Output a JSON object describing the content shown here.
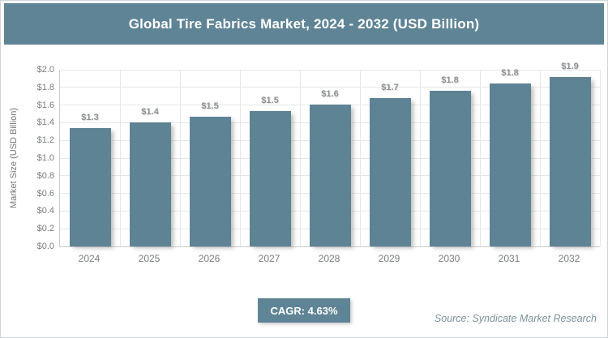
{
  "header": {
    "title": "Global Tire Fabrics Market, 2024 - 2032 (USD Billion)"
  },
  "footer": {
    "cagr_label": "CAGR: 4.63%",
    "source_label": "Source: Syndicate Market Research"
  },
  "colors": {
    "accent": "#5f8495",
    "header_bg": "#5f8495",
    "bar": "#5e8394",
    "grid": "#e5e7e8",
    "axis": "#c6cbce",
    "tick_text": "#797d7f",
    "data_label_text": "#8d9193",
    "source_text": "#7d929c",
    "page_border": "#cfd4d6",
    "title_text": "#ffffff"
  },
  "chart_data": {
    "type": "bar",
    "title": "Global Tire Fabrics Market, 2024 - 2032 (USD Billion)",
    "categories": [
      "2024",
      "2025",
      "2026",
      "2027",
      "2028",
      "2029",
      "2030",
      "2031",
      "2032"
    ],
    "values": [
      1.34,
      1.4,
      1.47,
      1.53,
      1.61,
      1.68,
      1.76,
      1.84,
      1.92
    ],
    "data_labels": [
      "$1.3",
      "$1.4",
      "$1.5",
      "$1.5",
      "$1.6",
      "$1.7",
      "$1.8",
      "$1.8",
      "$1.9"
    ],
    "xlabel": "",
    "ylabel": "Market Size (USD Billion)",
    "ylim": [
      0,
      2.0
    ],
    "ytick_step": 0.2,
    "ytick_labels": [
      "$0.0",
      "$0.2",
      "$0.4",
      "$0.6",
      "$0.8",
      "$1.0",
      "$1.2",
      "$1.4",
      "$1.6",
      "$1.8",
      "$2.0"
    ],
    "grid": true,
    "legend": false,
    "cagr_percent": "4.63%"
  }
}
